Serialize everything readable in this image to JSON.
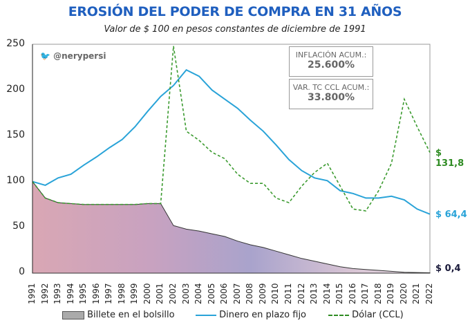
{
  "header": {
    "title": "EROSIÓN DEL PODER DE COMPRA EN 31 AÑOS",
    "subtitle": "Valor de $ 100 en pesos constantes de diciembre de 1991"
  },
  "watermark": {
    "icon": "twitter-bird-icon",
    "handle": "@nerypersi"
  },
  "boxes": [
    {
      "label": "INFLACIÓN ACUM.:",
      "value": "25.600%"
    },
    {
      "label": "VAR. TC CCL ACUM.:",
      "value": "33.800%"
    }
  ],
  "end_labels": {
    "dolar": {
      "text": "$ 131,8",
      "color": "#2e8b22"
    },
    "plazo_fijo": {
      "text": "$ 64,4",
      "color": "#29a3d8"
    },
    "billete": {
      "text": "$ 0,4",
      "color": "#1a1a3a"
    }
  },
  "legend": [
    {
      "label": "Billete en el bolsillo",
      "swatch": "banknote-swatch"
    },
    {
      "label": "Dinero en plazo fijo",
      "swatch": "solid-line",
      "color": "#29a3d8"
    },
    {
      "label": "Dólar (CCL)",
      "swatch": "dashed-line",
      "color": "#2e8b22"
    }
  ],
  "y_ticks": [
    "250",
    "200",
    "150",
    "100",
    "50",
    "0"
  ],
  "x_ticks": [
    "1991",
    "1992",
    "1993",
    "1994",
    "1995",
    "1996",
    "1997",
    "1998",
    "1999",
    "2000",
    "2001",
    "2002",
    "2003",
    "2004",
    "2005",
    "2006",
    "2007",
    "2008",
    "2009",
    "2010",
    "2011",
    "2012",
    "2013",
    "2014",
    "2015",
    "2016",
    "2017",
    "2018",
    "2019",
    "2020",
    "2021",
    "2022"
  ],
  "chart_data": {
    "type": "line",
    "title": "EROSIÓN DEL PODER DE COMPRA EN 31 AÑOS",
    "subtitle": "Valor de $ 100 en pesos constantes de diciembre de 1991",
    "xlabel": "",
    "ylabel": "",
    "ylim": [
      0,
      250
    ],
    "grid": false,
    "legend_position": "bottom",
    "x": [
      1991,
      1992,
      1993,
      1994,
      1995,
      1996,
      1997,
      1998,
      1999,
      2000,
      2001,
      2002,
      2003,
      2004,
      2005,
      2006,
      2007,
      2008,
      2009,
      2010,
      2011,
      2012,
      2013,
      2014,
      2015,
      2016,
      2017,
      2018,
      2019,
      2020,
      2021,
      2022
    ],
    "series": [
      {
        "name": "Billete en el bolsillo",
        "style": "area-banknote",
        "values": [
          100,
          82,
          77,
          76,
          75,
          75,
          75,
          75,
          75,
          76,
          76,
          52,
          48,
          46,
          43,
          40,
          35,
          31,
          28,
          24,
          20,
          16,
          13,
          10,
          7,
          5,
          4,
          3,
          2,
          1,
          0.7,
          0.4
        ]
      },
      {
        "name": "Dinero en plazo fijo",
        "style": "solid",
        "color": "#29a3d8",
        "values": [
          100,
          96,
          104,
          108,
          118,
          127,
          137,
          146,
          160,
          177,
          193,
          205,
          222,
          215,
          200,
          190,
          180,
          167,
          155,
          140,
          124,
          112,
          104,
          101,
          90,
          87,
          82,
          82,
          84,
          80,
          70,
          64.4
        ]
      },
      {
        "name": "Dólar (CCL)",
        "style": "dashed",
        "color": "#2e8b22",
        "values": [
          100,
          82,
          77,
          76,
          75,
          75,
          75,
          75,
          75,
          76,
          76,
          248,
          155,
          145,
          132,
          125,
          108,
          98,
          98,
          82,
          77,
          95,
          110,
          120,
          95,
          70,
          68,
          90,
          120,
          190,
          160,
          131.8
        ]
      }
    ],
    "annotations": [
      {
        "text": "INFLACIÓN ACUM.: 25.600%"
      },
      {
        "text": "VAR. TC CCL ACUM.: 33.800%"
      },
      {
        "text": "$ 131,8"
      },
      {
        "text": "$ 64,4"
      },
      {
        "text": "$ 0,4"
      }
    ]
  }
}
